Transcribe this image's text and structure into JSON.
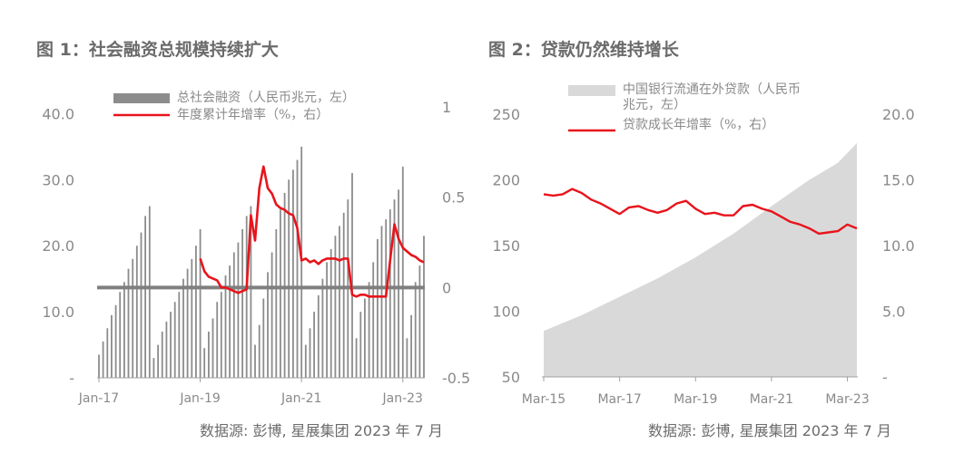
{
  "titles": {
    "chart1": "图 1：社会融资总规模持续扩大",
    "chart2": "图 2：贷款仍然维持增长"
  },
  "sources": {
    "chart1": "数据源: 彭博, 星展集团 2023 年 7 月",
    "chart2": "数据源: 彭博, 星展集团 2023 年 7 月"
  },
  "colors": {
    "bars": "#8c8c8c",
    "red": "#e8141c",
    "area": "#d9d9d9",
    "axis": "#a0a0a0",
    "text": "#8a8a8a"
  },
  "chart_data": [
    {
      "type": "bar",
      "legend": [
        "总社会融资（人民币兆元，左）",
        "年度累计年增率（%，右）"
      ],
      "legend_placement": "top-left",
      "x_ticks": [
        "Jan-17",
        "Jan-19",
        "Jan-21",
        "Jan-23"
      ],
      "y_left_ticks": [
        "40.0",
        "30.0",
        "20.0",
        "10.0",
        "-"
      ],
      "y_right_ticks": [
        "1",
        "0.5",
        "0",
        "-0.5"
      ],
      "y_left_range": [
        0,
        45
      ],
      "y_right_range": [
        -0.5,
        1
      ],
      "series": [
        {
          "name": "总社会融资（人民币兆元，左）",
          "type": "bar",
          "x_start": "2017-01",
          "values": [
            3.5,
            5.5,
            7.5,
            9.5,
            11.0,
            13.0,
            14.5,
            16.5,
            18.0,
            20.0,
            22.0,
            24.5,
            26.0,
            3.0,
            5.0,
            7.0,
            8.5,
            10.0,
            11.5,
            13.0,
            15.0,
            16.5,
            18.0,
            20.0,
            22.5,
            4.5,
            7.0,
            9.0,
            11.5,
            13.0,
            15.5,
            17.0,
            19.0,
            20.5,
            22.5,
            24.5,
            26.0,
            5.0,
            8.0,
            12.0,
            16.0,
            19.0,
            22.5,
            25.5,
            28.0,
            30.0,
            31.5,
            33.0,
            35.0,
            5.0,
            7.5,
            10.0,
            12.5,
            15.0,
            17.5,
            19.5,
            21.5,
            23.0,
            25.0,
            27.0,
            31.0,
            6.0,
            10.0,
            12.0,
            14.5,
            17.5,
            21.0,
            23.0,
            24.0,
            25.5,
            27.0,
            28.5,
            32.0,
            6.0,
            9.5,
            14.5,
            17.0,
            21.5
          ]
        },
        {
          "name": "年度累计年增率（%，右）",
          "type": "line",
          "x": [
            "2019-01",
            "2019-02",
            "2019-03",
            "2019-04",
            "2019-05",
            "2019-06",
            "2019-07",
            "2019-08",
            "2019-09",
            "2019-10",
            "2019-11",
            "2019-12",
            "2020-01",
            "2020-02",
            "2020-03",
            "2020-04",
            "2020-05",
            "2020-06",
            "2020-07",
            "2020-08",
            "2020-09",
            "2020-10",
            "2020-11",
            "2020-12",
            "2021-01",
            "2021-02",
            "2021-03",
            "2021-04",
            "2021-05",
            "2021-06",
            "2021-07",
            "2021-08",
            "2021-09",
            "2021-10",
            "2021-11",
            "2021-12",
            "2022-01",
            "2022-02",
            "2022-03",
            "2022-04",
            "2022-05",
            "2022-06",
            "2022-07",
            "2022-08",
            "2022-09",
            "2022-10",
            "2022-11",
            "2022-12",
            "2023-01",
            "2023-02",
            "2023-03",
            "2023-04",
            "2023-05",
            "2023-06"
          ],
          "values": [
            0.16,
            0.09,
            0.06,
            0.05,
            0.04,
            0.0,
            0.0,
            -0.01,
            -0.02,
            -0.03,
            -0.02,
            -0.01,
            0.4,
            0.26,
            0.55,
            0.67,
            0.55,
            0.52,
            0.46,
            0.44,
            0.43,
            0.41,
            0.4,
            0.33,
            0.15,
            0.16,
            0.14,
            0.15,
            0.13,
            0.15,
            0.16,
            0.16,
            0.16,
            0.15,
            0.16,
            0.16,
            -0.04,
            -0.05,
            -0.04,
            -0.04,
            -0.05,
            -0.05,
            -0.05,
            -0.05,
            -0.05,
            0.15,
            0.35,
            0.27,
            0.22,
            0.2,
            0.18,
            0.17,
            0.15,
            0.14
          ]
        }
      ]
    },
    {
      "type": "area",
      "legend": [
        "中国银行流通在外贷款（人民币兆元，左）",
        "贷款成长年增率（%，右）"
      ],
      "legend_placement": "top-center",
      "x_ticks": [
        "Mar-15",
        "Mar-17",
        "Mar-19",
        "Mar-21",
        "Mar-23"
      ],
      "y_left_ticks": [
        "250",
        "200",
        "150",
        "100",
        "50"
      ],
      "y_right_ticks": [
        "20.0",
        "15.0",
        "10.0",
        "5.0",
        "-"
      ],
      "y_left_range": [
        50,
        250
      ],
      "y_right_range": [
        0,
        20
      ],
      "series": [
        {
          "name": "中国银行流通在外贷款（人民币兆元，左）",
          "type": "area",
          "x": [
            "2015-03",
            "2016-03",
            "2017-03",
            "2018-03",
            "2019-03",
            "2020-03",
            "2021-03",
            "2022-03",
            "2022-12",
            "2023-06"
          ],
          "values": [
            85,
            97,
            111,
            125,
            141,
            159,
            180,
            200,
            213,
            228
          ]
        },
        {
          "name": "贷款成长年增率（%，右）",
          "type": "line",
          "x": [
            "2015-03",
            "2015-06",
            "2015-09",
            "2015-12",
            "2016-03",
            "2016-06",
            "2016-09",
            "2016-12",
            "2017-03",
            "2017-06",
            "2017-09",
            "2017-12",
            "2018-03",
            "2018-06",
            "2018-09",
            "2018-12",
            "2019-03",
            "2019-06",
            "2019-09",
            "2019-12",
            "2020-03",
            "2020-06",
            "2020-09",
            "2020-12",
            "2021-03",
            "2021-06",
            "2021-09",
            "2021-12",
            "2022-03",
            "2022-06",
            "2022-09",
            "2022-12",
            "2023-03",
            "2023-06"
          ],
          "values": [
            13.9,
            13.8,
            13.9,
            14.3,
            14.0,
            13.5,
            13.2,
            12.8,
            12.4,
            12.9,
            13.0,
            12.7,
            12.5,
            12.7,
            13.2,
            13.4,
            12.8,
            12.4,
            12.5,
            12.3,
            12.3,
            13.0,
            13.1,
            12.8,
            12.6,
            12.2,
            11.8,
            11.6,
            11.3,
            10.9,
            11.0,
            11.1,
            11.6,
            11.3
          ]
        }
      ]
    }
  ]
}
